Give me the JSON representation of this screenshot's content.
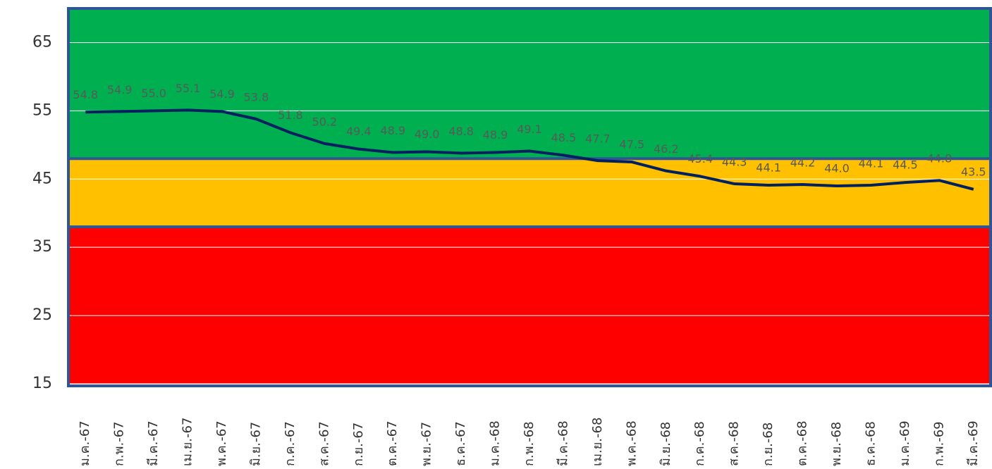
{
  "chart_data": {
    "type": "line",
    "categories": [
      "ม.ค.-67",
      "ก.พ.-67",
      "มี.ค.-67",
      "เม.ย.-67",
      "พ.ค.-67",
      "มิ.ย.-67",
      "ก.ค.-67",
      "ส.ค.-67",
      "ก.ย.-67",
      "ต.ค.-67",
      "พ.ย.-67",
      "ธ.ค.-67",
      "ม.ค.-68",
      "ก.พ.-68",
      "มี.ค.-68",
      "เม.ย.-68",
      "พ.ค.-68",
      "มิ.ย.-68",
      "ก.ค.-68",
      "ส.ค.-68",
      "ก.ย.-68",
      "ต.ค.-68",
      "พ.ย.-68",
      "ธ.ค.-68",
      "ม.ค.-69",
      "ก.พ.-69",
      "มี.ค.-69"
    ],
    "values": [
      54.8,
      54.9,
      55.0,
      55.1,
      54.9,
      53.8,
      51.8,
      50.2,
      49.4,
      48.9,
      49.0,
      48.8,
      48.9,
      49.1,
      48.5,
      47.7,
      47.5,
      46.2,
      45.4,
      44.3,
      44.1,
      44.2,
      44.0,
      44.1,
      44.5,
      44.8,
      43.5
    ],
    "value_labels": [
      "54.8",
      "54.9",
      "55.0",
      "55.1",
      "54.9",
      "53.8",
      "51.8",
      "50.2",
      "49.4",
      "48.9",
      "49.0",
      "48.8",
      "48.9",
      "49.1",
      "48.5",
      "47.7",
      "47.5",
      "46.2",
      "45.4",
      "44.3",
      "44.1",
      "44.2",
      "44.0",
      "44.1",
      "44.5",
      "44.8",
      "43.5"
    ],
    "color": "#002060",
    "ylim": [
      15,
      70
    ],
    "yticks": [
      15,
      25,
      35,
      45,
      55,
      65
    ],
    "grid": true,
    "bands": [
      {
        "from": 48,
        "to": 70,
        "color": "#00b050"
      },
      {
        "from": 38,
        "to": 48,
        "color": "#ffc000"
      },
      {
        "from": 15,
        "to": 38,
        "color": "#ff0000"
      }
    ]
  }
}
